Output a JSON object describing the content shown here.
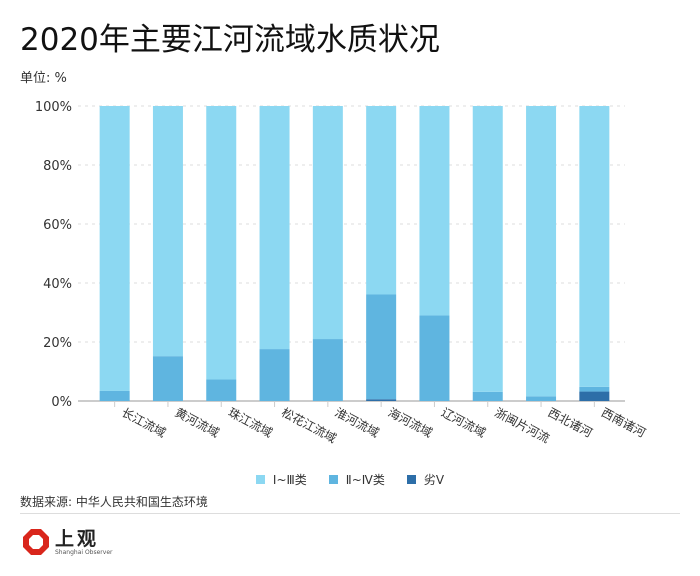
{
  "title": "2020年主要江河流域水质状况",
  "unit": "单位: %",
  "source": "数据来源: 中华人民共和国生态环境",
  "logo": {
    "zh": "上观",
    "en": "Shanghai Observer"
  },
  "colors": {
    "s1": "#8cd8f2",
    "s2": "#5fb5e0",
    "s3": "#2d6ea8"
  },
  "chart_data": {
    "type": "bar",
    "stacked": true,
    "percent": true,
    "title": "2020年主要江河流域水质状况",
    "categories": [
      "长江流域",
      "黄河流域",
      "珠江流域",
      "松花江流域",
      "淮河流域",
      "海河流域",
      "辽河流域",
      "浙闽片河流",
      "西北诸河",
      "西南诸河"
    ],
    "series": [
      {
        "name": "劣V",
        "values": [
          0,
          0,
          0,
          0,
          0,
          0.6,
          0,
          0,
          0,
          3.2
        ]
      },
      {
        "name": "Ⅱ~Ⅳ类",
        "values": [
          3.4,
          15.2,
          7.3,
          17.6,
          21.0,
          35.5,
          29.0,
          3.1,
          1.6,
          1.6
        ]
      },
      {
        "name": "Ⅰ~Ⅲ类",
        "values": [
          96.6,
          84.8,
          92.7,
          82.4,
          79.0,
          63.9,
          71.0,
          96.9,
          98.4,
          95.2
        ]
      }
    ],
    "yticks": [
      "0%",
      "20%",
      "40%",
      "60%",
      "80%",
      "100%"
    ],
    "ylim": [
      0,
      100
    ],
    "grid": true,
    "legend": "bottom"
  }
}
